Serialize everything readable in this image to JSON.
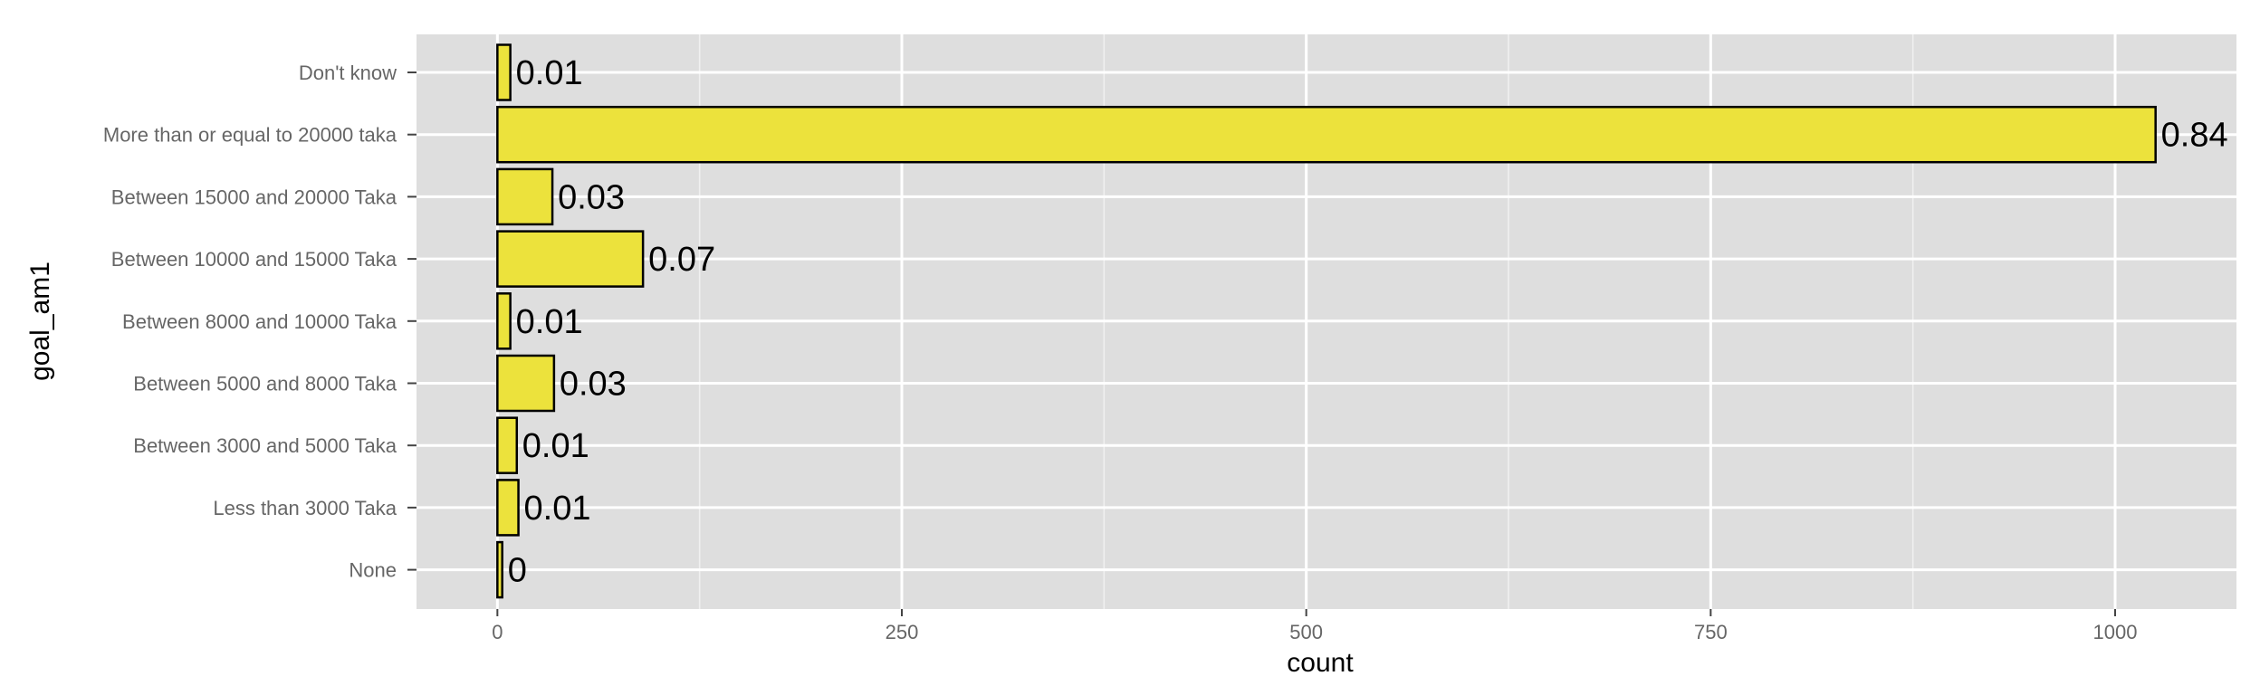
{
  "chart_data": {
    "type": "bar",
    "orientation": "horizontal",
    "categories": [
      "Don't know",
      "More than or equal to 20000 taka",
      "Between 15000 and 20000 Taka",
      "Between 10000 and 15000 Taka",
      "Between 8000  and 10000 Taka",
      "Between 5000  and 8000 Taka",
      "Between 3000 and 5000 Taka",
      "Less than 3000 Taka",
      "None"
    ],
    "values": [
      8,
      1025,
      34,
      90,
      8,
      35,
      12,
      13,
      3
    ],
    "data_labels": [
      "0.01",
      "0.84",
      "0.03",
      "0.07",
      "0.01",
      "0.03",
      "0.01",
      "0.01",
      "0"
    ],
    "xlabel": "count",
    "ylabel": "goal_am1",
    "xlim": [
      -50,
      1075
    ],
    "x_ticks": [
      0,
      250,
      500,
      750,
      1000
    ],
    "x_tick_labels": [
      "0",
      "250",
      "500",
      "750",
      "1000"
    ],
    "grid": true,
    "colors": {
      "panel": "#dedede",
      "grid": "#ffffff",
      "bar_fill": "#ece23c",
      "bar_stroke": "#000000"
    }
  }
}
